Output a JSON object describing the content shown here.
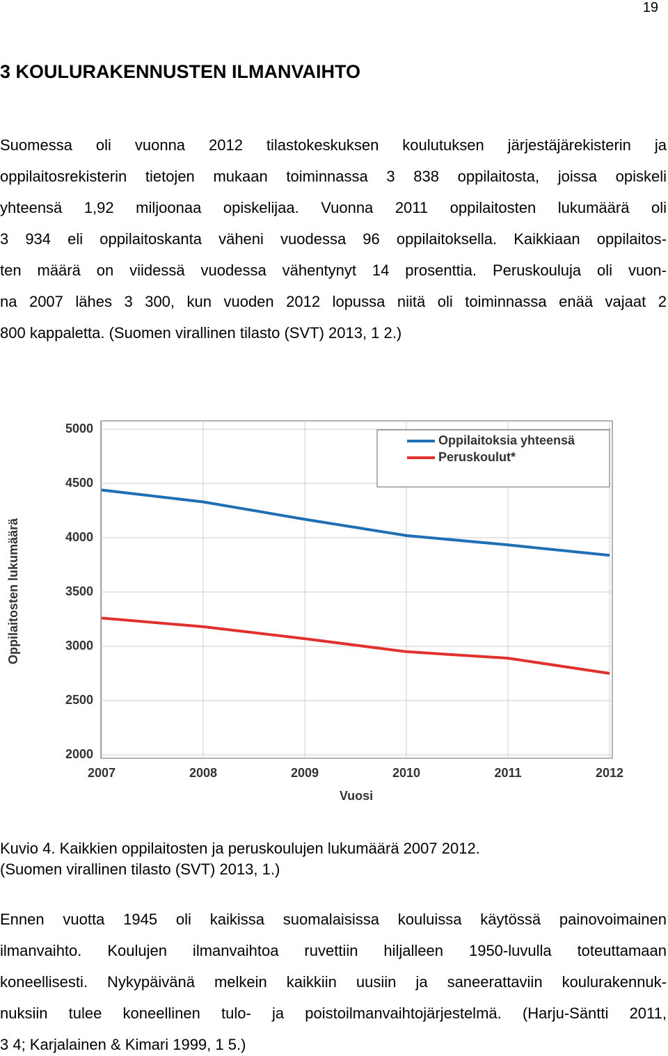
{
  "page_number": "19",
  "heading": "3 KOULURAKENNUSTEN ILMANVAIHTO",
  "paragraph_1": {
    "lines": [
      "Suomessa oli vuonna 2012 tilastokeskuksen koulutuksen järjestäjärekisterin ja",
      "oppilaitosrekisterin tietojen mukaan toiminnassa 3 838 oppilaitosta, joissa opiskeli",
      "yhteensä 1,92 miljoonaa opiskelijaa. Vuonna 2011 oppilaitosten lukumäärä oli",
      "3 934 eli oppilaitoskanta väheni vuodessa 96 oppilaitoksella. Kaikkiaan oppilaitos-",
      "ten määrä on viidessä vuodessa vähentynyt 14 prosenttia. Peruskouluja oli vuon-",
      "na 2007 lähes 3 300, kun vuoden 2012 lopussa niitä oli toiminnassa enää vajaat 2",
      "800 kappaletta. (Suomen virallinen tilasto (SVT) 2013, 1 2.)"
    ]
  },
  "figure": {
    "chart_data": {
      "type": "line",
      "x": [
        2007,
        2008,
        2009,
        2010,
        2011,
        2012
      ],
      "series": [
        {
          "name": "Oppilaitoksia yhteensä",
          "color": "#1f6fb4",
          "values": [
            4440,
            4330,
            4170,
            4020,
            3934,
            3838
          ]
        },
        {
          "name": "Peruskoulut*",
          "color": "#e0312f",
          "values": [
            3260,
            3180,
            3070,
            2950,
            2890,
            2750
          ]
        }
      ],
      "xlim": [
        2007,
        2012
      ],
      "xticks": [
        2007,
        2008,
        2009,
        2010,
        2011,
        2012
      ],
      "ylim": [
        2000,
        5000
      ],
      "yticks": [
        2000,
        2500,
        3000,
        3500,
        4000,
        4500,
        5000
      ],
      "x_label": "Vuosi",
      "y_label": "Oppilaitosten lukumäärä",
      "grid": true,
      "legend": "top-right"
    },
    "caption": [
      "Kuvio 4. Kaikkien oppilaitosten ja peruskoulujen lukumäärä 2007 2012.",
      "(Suomen virallinen tilasto (SVT) 2013, 1.)"
    ]
  },
  "paragraph_2": {
    "lines": [
      "Ennen vuotta 1945 oli kaikissa suomalaisissa kouluissa käytössä painovoimainen",
      "ilmanvaihto. Koulujen ilmanvaihtoa ruvettiin hiljalleen 1950-luvulla toteuttamaan",
      "koneellisesti. Nykypäivänä melkein kaikkiin uusiin ja saneerattaviin koulurakennuk-",
      "nuksiin tulee koneellinen tulo- ja poistoilmanvaihtojärjestelmä. (Harju-Säntti 2011,",
      "3 4; Karjalainen & Kimari 1999, 1 5.)"
    ]
  }
}
